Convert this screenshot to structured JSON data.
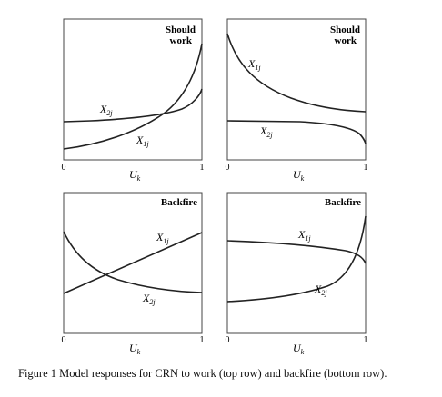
{
  "panels": [
    {
      "id": "top-left",
      "title_line1": "Should",
      "title_line2": "work",
      "curve_a": {
        "main": "X",
        "sub": "2j"
      },
      "curve_b": {
        "main": "X",
        "sub": "1j"
      },
      "axis": {
        "var": "U",
        "sub": "k",
        "tick_min": "0",
        "tick_max": "1"
      }
    },
    {
      "id": "top-right",
      "title_line1": "Should",
      "title_line2": "work",
      "curve_a": {
        "main": "X",
        "sub": "1j"
      },
      "curve_b": {
        "main": "X",
        "sub": "2j"
      },
      "axis": {
        "var": "U",
        "sub": "k",
        "tick_min": "0",
        "tick_max": "1"
      }
    },
    {
      "id": "bottom-left",
      "title_line1": "Backfire",
      "curve_a": {
        "main": "X",
        "sub": "1j"
      },
      "curve_b": {
        "main": "X",
        "sub": "2j"
      },
      "axis": {
        "var": "U",
        "sub": "k",
        "tick_min": "0",
        "tick_max": "1"
      }
    },
    {
      "id": "bottom-right",
      "title_line1": "Backfire",
      "curve_a": {
        "main": "X",
        "sub": "1j"
      },
      "curve_b": {
        "main": "X",
        "sub": "2j"
      },
      "axis": {
        "var": "U",
        "sub": "k",
        "tick_min": "0",
        "tick_max": "1"
      }
    }
  ],
  "caption": "Figure 1 Model responses for CRN to work (top row) and backfire (bottom row)."
}
